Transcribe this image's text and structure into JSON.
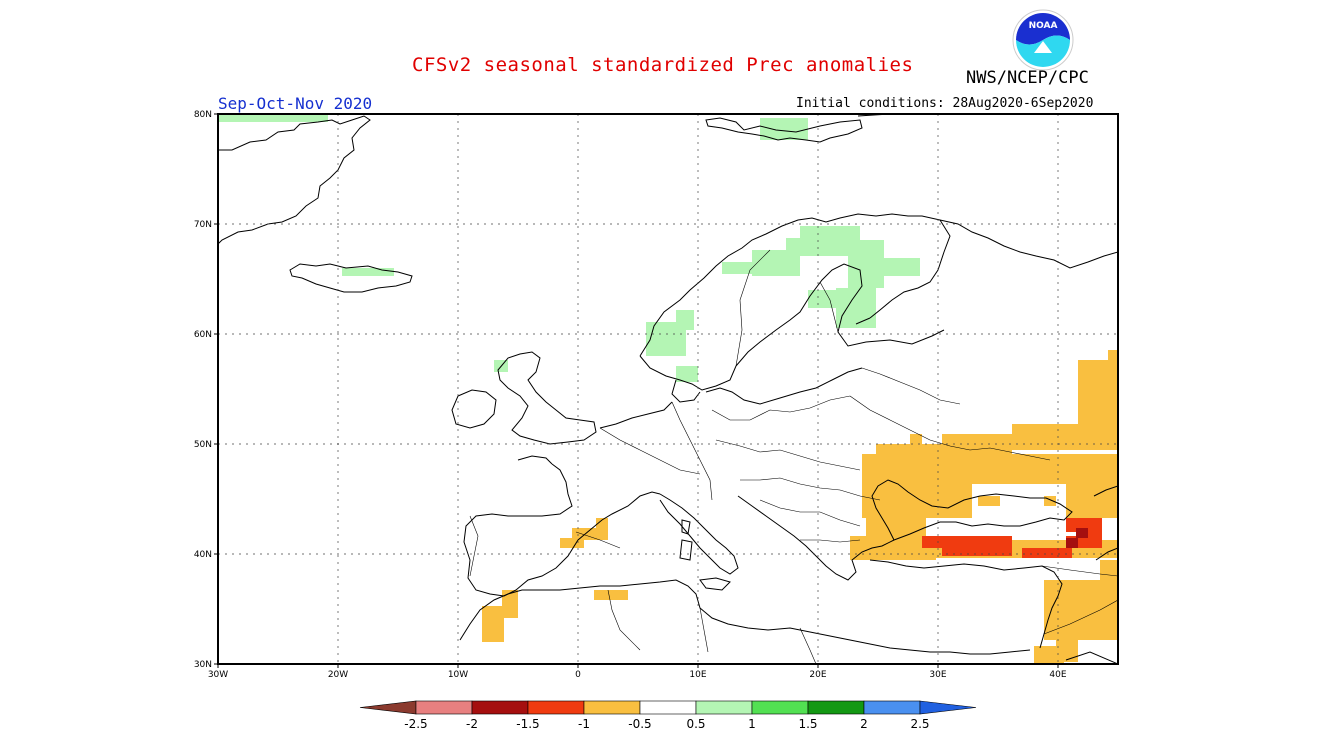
{
  "header": {
    "title": "CFSv2 seasonal standardized Prec anomalies",
    "agency": "NWS/NCEP/CPC",
    "season": "Sep-Oct-Nov 2020",
    "initial_conditions": "Initial conditions: 28Aug2020-6Sep2020",
    "logo_text": "NOAA"
  },
  "map": {
    "lat_labels": [
      "80N",
      "70N",
      "60N",
      "50N",
      "40N",
      "30N"
    ],
    "lon_labels": [
      "30W",
      "20W",
      "10W",
      "0",
      "10E",
      "20E",
      "30E",
      "40E"
    ],
    "lon_range": [
      -30,
      45
    ],
    "lat_range": [
      30,
      80
    ]
  },
  "colorbar": {
    "labels": [
      "-2.5",
      "-2",
      "-1.5",
      "-1",
      "-0.5",
      "0.5",
      "1",
      "1.5",
      "2",
      "2.5"
    ],
    "colors": [
      "#8b3a2e",
      "#e88080",
      "#a50f0f",
      "#f03b10",
      "#f9bf40",
      "#ffffff",
      "#b4f5b4",
      "#52e052",
      "#139813",
      "#4a90f0",
      "#2060e0"
    ]
  },
  "colors": {
    "dry_light": "#f9bf40",
    "dry_strong": "#f03b10",
    "dry_extreme": "#a50f0f",
    "wet_light": "#b4f5b4",
    "title_red": "#e00000",
    "season_blue": "#1530d0"
  }
}
